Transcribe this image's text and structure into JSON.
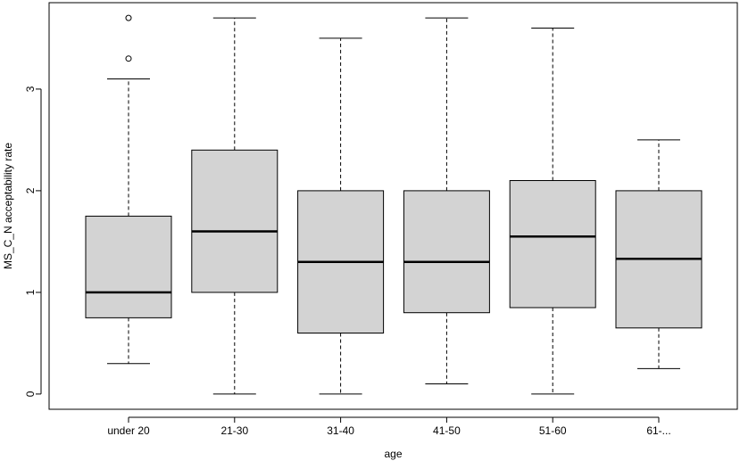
{
  "chart_data": {
    "type": "boxplot",
    "xlabel": "age",
    "ylabel": "MS_C_N acceptability rate",
    "categories": [
      "under 20",
      "21-30",
      "31-40",
      "41-50",
      "51-60",
      "61-..."
    ],
    "boxes": [
      {
        "category": "under 20",
        "whisker_low": 0.3,
        "q1": 0.75,
        "median": 1.0,
        "q3": 1.75,
        "whisker_high": 3.1,
        "outliers": [
          3.3,
          3.7
        ]
      },
      {
        "category": "21-30",
        "whisker_low": 0.0,
        "q1": 1.0,
        "median": 1.6,
        "q3": 2.4,
        "whisker_high": 3.7,
        "outliers": []
      },
      {
        "category": "31-40",
        "whisker_low": 0.0,
        "q1": 0.6,
        "median": 1.3,
        "q3": 2.0,
        "whisker_high": 3.5,
        "outliers": []
      },
      {
        "category": "41-50",
        "whisker_low": 0.1,
        "q1": 0.8,
        "median": 1.3,
        "q3": 2.0,
        "whisker_high": 3.7,
        "outliers": []
      },
      {
        "category": "51-60",
        "whisker_low": 0.0,
        "q1": 0.85,
        "median": 1.55,
        "q3": 2.1,
        "whisker_high": 3.6,
        "outliers": []
      },
      {
        "category": "61-...",
        "whisker_low": 0.25,
        "q1": 0.65,
        "median": 1.33,
        "q3": 2.0,
        "whisker_high": 2.5,
        "outliers": []
      }
    ],
    "yticks": [
      "0",
      "1",
      "2",
      "3"
    ],
    "ylim": [
      -0.15,
      3.85
    ],
    "grid": false,
    "box_fill": "#d3d3d3"
  }
}
